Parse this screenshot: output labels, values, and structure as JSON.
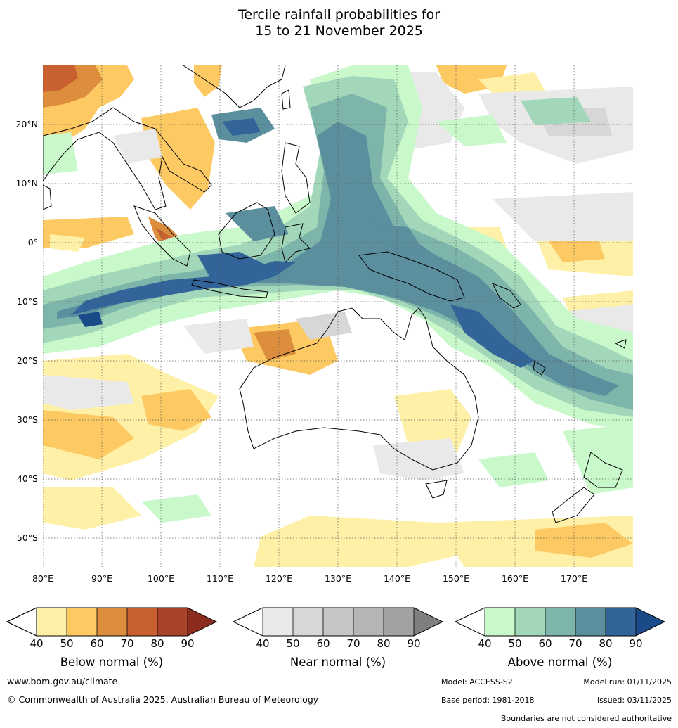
{
  "title_line1": "Tercile rainfall probabilities for",
  "title_line2": "15 to 21 November 2025",
  "map": {
    "lat_labels": [
      "20°N",
      "10°N",
      "0°",
      "10°S",
      "20°S",
      "30°S",
      "40°S",
      "50°S"
    ],
    "lon_labels": [
      "80°E",
      "90°E",
      "100°E",
      "110°E",
      "120°E",
      "130°E",
      "140°E",
      "150°E",
      "160°E",
      "170°E"
    ]
  },
  "colorbars": {
    "below": {
      "label": "Below normal (%)",
      "ticks": [
        "40",
        "50",
        "60",
        "70",
        "80",
        "90"
      ],
      "colors": [
        "#fff0a8",
        "#fdc963",
        "#dc8e3d",
        "#c86030",
        "#a8432a",
        "#8b2c1e"
      ]
    },
    "near": {
      "label": "Near normal (%)",
      "ticks": [
        "40",
        "50",
        "60",
        "70",
        "80",
        "90"
      ],
      "colors": [
        "#e9e9e9",
        "#d7d7d7",
        "#c6c6c6",
        "#b5b5b5",
        "#a2a2a2",
        "#7f7f7f"
      ]
    },
    "above": {
      "label": "Above normal (%)",
      "ticks": [
        "40",
        "50",
        "60",
        "70",
        "80",
        "90"
      ],
      "colors": [
        "#c9f9cb",
        "#a3d7b9",
        "#7db5ab",
        "#5b8f9e",
        "#32649a",
        "#1a4a87"
      ]
    }
  },
  "footer": {
    "website": "www.bom.gov.au/climate",
    "copyright": "© Commonwealth of Australia 2025, Australian Bureau of Meteorology",
    "model": "Model: ACCESS-S2",
    "model_run": "Model run: 01/11/2025",
    "base_period": "Base period: 1981-2018",
    "issued": "Issued: 03/11/2025",
    "disclaimer": "Boundaries are not considered authoritative"
  }
}
